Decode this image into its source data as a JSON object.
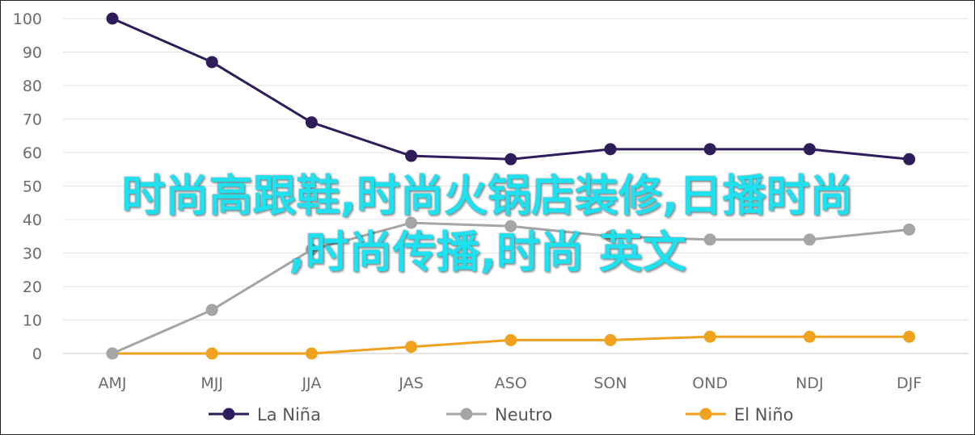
{
  "chart_data": {
    "type": "line",
    "categories": [
      "AMJ",
      "MJJ",
      "JJA",
      "JAS",
      "ASO",
      "SON",
      "OND",
      "NDJ",
      "DJF"
    ],
    "ylim": [
      0,
      100
    ],
    "yticks": [
      0,
      10,
      20,
      30,
      40,
      50,
      60,
      70,
      80,
      90,
      100
    ],
    "grid": true,
    "legend_position": "bottom",
    "series": [
      {
        "name": "La Niña",
        "color": "#2e1c5b",
        "values": [
          100,
          87,
          69,
          59,
          58,
          61,
          61,
          61,
          58
        ]
      },
      {
        "name": "Neutro",
        "color": "#a5a5a5",
        "values": [
          0,
          13,
          31,
          39,
          38,
          35,
          34,
          34,
          37
        ]
      },
      {
        "name": "El Niño",
        "color": "#f0a11e",
        "values": [
          0,
          0,
          0,
          2,
          4,
          4,
          5,
          5,
          5
        ]
      }
    ]
  },
  "overlay": {
    "line1": "时尚高跟鞋,时尚火锅店装修,日播时尚",
    "line2": ",时尚传播,时尚 英文"
  }
}
